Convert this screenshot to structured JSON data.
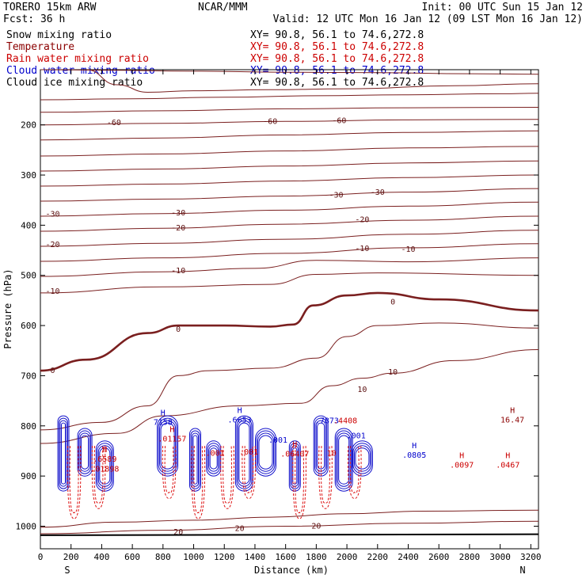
{
  "header": {
    "left_line1": "TORERO  15km ARW",
    "center_line1": "NCAR/MMM",
    "right_line1": "Init: 00 UTC Sun 15 Jan 12",
    "left_line2": "Fcst:   36 h",
    "right_line2": "Valid: 12 UTC Mon 16 Jan 12 (09 LST Mon 16 Jan 12)",
    "fields": [
      {
        "name": "Snow mixing ratio",
        "xy": "XY=  90.8, 56.1 to  74.6,272.8",
        "color": "#000000",
        "xy_color": "#000000"
      },
      {
        "name": "Temperature",
        "xy": "XY=  90.8, 56.1 to  74.6,272.8",
        "color": "#8b0000",
        "xy_color": "#cc0000"
      },
      {
        "name": "Rain water mixing ratio",
        "xy": "XY=  90.8, 56.1 to  74.6,272.8",
        "color": "#cc0000",
        "xy_color": "#cc0000"
      },
      {
        "name": "Cloud water mixing ratio",
        "xy": "XY=  90.8, 56.1 to  74.6,272.8",
        "color": "#0000cc",
        "xy_color": "#0000cc"
      },
      {
        "name": "Cloud ice mixing ratio",
        "xy": "XY=  90.8, 56.1 to  74.6,272.8",
        "color": "#000000",
        "xy_color": "#000000"
      }
    ]
  },
  "chart_data": {
    "type": "contour",
    "xlabel": "Distance (km)",
    "ylabel": "Pressure (hPa)",
    "x_ticks": [
      0,
      200,
      400,
      600,
      800,
      1000,
      1200,
      1400,
      1600,
      1800,
      2000,
      2200,
      2400,
      2600,
      2800,
      3000,
      3200
    ],
    "y_ticks": [
      200,
      300,
      400,
      500,
      600,
      700,
      800,
      900,
      1000
    ],
    "xlim": [
      0,
      3250
    ],
    "ylim": [
      1045,
      90
    ],
    "end_labels": {
      "left": "S",
      "right": "N"
    },
    "temperature_contours": [
      {
        "level": "-70",
        "points": [
          [
            0,
            90
          ],
          [
            400,
            91
          ],
          [
            1000,
            93
          ],
          [
            1600,
            95
          ],
          [
            2200,
            96
          ],
          [
            2800,
            98
          ],
          [
            3250,
            99
          ]
        ]
      },
      {
        "level": "-70",
        "points": [
          [
            300,
            90
          ],
          [
            500,
            120
          ],
          [
            700,
            135
          ],
          [
            1000,
            132
          ],
          [
            1500,
            130
          ],
          [
            2000,
            128
          ],
          [
            2700,
            122
          ],
          [
            3250,
            118
          ]
        ]
      },
      {
        "level": "-60",
        "points": [
          [
            0,
            150
          ],
          [
            600,
            148
          ],
          [
            1200,
            145
          ],
          [
            1800,
            142
          ],
          [
            2400,
            140
          ],
          [
            3000,
            138
          ],
          [
            3250,
            137
          ]
        ]
      },
      {
        "level": "-60",
        "points": [
          [
            0,
            175
          ],
          [
            800,
            172
          ],
          [
            1600,
            168
          ],
          [
            2400,
            166
          ],
          [
            3250,
            165
          ]
        ]
      },
      {
        "level": "-60",
        "points": [
          [
            0,
            200
          ],
          [
            800,
            197
          ],
          [
            1600,
            193
          ],
          [
            2400,
            190
          ],
          [
            3250,
            189
          ]
        ]
      },
      {
        "level": "-50",
        "points": [
          [
            0,
            230
          ],
          [
            800,
            226
          ],
          [
            1600,
            220
          ],
          [
            2400,
            215
          ],
          [
            3250,
            212
          ]
        ]
      },
      {
        "level": "-50",
        "points": [
          [
            0,
            262
          ],
          [
            800,
            258
          ],
          [
            1600,
            252
          ],
          [
            2400,
            246
          ],
          [
            3250,
            243
          ]
        ]
      },
      {
        "level": "-40",
        "points": [
          [
            0,
            292
          ],
          [
            800,
            288
          ],
          [
            1600,
            282
          ],
          [
            2400,
            276
          ],
          [
            3250,
            272
          ]
        ]
      },
      {
        "level": "-40",
        "points": [
          [
            0,
            322
          ],
          [
            800,
            318
          ],
          [
            1600,
            312
          ],
          [
            2400,
            305
          ],
          [
            3250,
            300
          ]
        ]
      },
      {
        "level": "-30",
        "points": [
          [
            0,
            352
          ],
          [
            800,
            348
          ],
          [
            1600,
            342
          ],
          [
            2400,
            334
          ],
          [
            3250,
            327
          ]
        ]
      },
      {
        "level": "-30",
        "points": [
          [
            0,
            382
          ],
          [
            800,
            377
          ],
          [
            1600,
            370
          ],
          [
            2400,
            362
          ],
          [
            3250,
            354
          ]
        ]
      },
      {
        "level": "-20",
        "points": [
          [
            0,
            412
          ],
          [
            800,
            406
          ],
          [
            1600,
            398
          ],
          [
            2400,
            390
          ],
          [
            3250,
            382
          ]
        ]
      },
      {
        "level": "-20",
        "points": [
          [
            0,
            442
          ],
          [
            800,
            436
          ],
          [
            1600,
            428
          ],
          [
            2400,
            418
          ],
          [
            3250,
            410
          ]
        ]
      },
      {
        "level": "-10",
        "points": [
          [
            0,
            472
          ],
          [
            800,
            465
          ],
          [
            1600,
            456
          ],
          [
            2400,
            445
          ],
          [
            3250,
            437
          ]
        ]
      },
      {
        "level": "-10",
        "points": [
          [
            0,
            502
          ],
          [
            800,
            493
          ],
          [
            1400,
            486
          ],
          [
            1800,
            470
          ],
          [
            2400,
            473
          ],
          [
            3250,
            465
          ]
        ]
      },
      {
        "level": "-10",
        "points": [
          [
            0,
            535
          ],
          [
            800,
            523
          ],
          [
            1500,
            518
          ],
          [
            1800,
            498
          ],
          [
            2200,
            495
          ],
          [
            3250,
            500
          ]
        ]
      },
      {
        "level": "0",
        "bold": true,
        "points": [
          [
            0,
            690
          ],
          [
            300,
            668
          ],
          [
            700,
            615
          ],
          [
            900,
            600
          ],
          [
            1200,
            600
          ],
          [
            1500,
            602
          ],
          [
            1650,
            598
          ],
          [
            1780,
            560
          ],
          [
            2000,
            540
          ],
          [
            2200,
            535
          ],
          [
            2600,
            548
          ],
          [
            3250,
            570
          ]
        ]
      },
      {
        "level": "10",
        "points": [
          [
            0,
            808
          ],
          [
            400,
            793
          ],
          [
            700,
            760
          ],
          [
            900,
            700
          ],
          [
            1100,
            690
          ],
          [
            1500,
            685
          ],
          [
            1800,
            665
          ],
          [
            2000,
            622
          ],
          [
            2200,
            600
          ],
          [
            2600,
            595
          ],
          [
            3250,
            605
          ]
        ]
      },
      {
        "level": "10",
        "points": [
          [
            0,
            835
          ],
          [
            500,
            815
          ],
          [
            800,
            780
          ],
          [
            1300,
            760
          ],
          [
            1700,
            755
          ],
          [
            1900,
            720
          ],
          [
            2100,
            705
          ],
          [
            2300,
            695
          ],
          [
            2700,
            670
          ],
          [
            3250,
            648
          ]
        ]
      },
      {
        "level": "20",
        "points": [
          [
            0,
            1002
          ],
          [
            500,
            992
          ],
          [
            1000,
            988
          ],
          [
            1500,
            982
          ],
          [
            2000,
            975
          ],
          [
            2500,
            970
          ],
          [
            3250,
            968
          ]
        ]
      },
      {
        "level": "20",
        "points": [
          [
            0,
            1015
          ],
          [
            800,
            1008
          ],
          [
            1600,
            1000
          ],
          [
            2400,
            994
          ],
          [
            3250,
            990
          ]
        ]
      }
    ],
    "contour_labels": [
      {
        "text": "-60",
        "x": 480,
        "y": 196
      },
      {
        "text": "-60",
        "x": 1500,
        "y": 193
      },
      {
        "text": "-60",
        "x": 1950,
        "y": 192
      },
      {
        "text": "-30",
        "x": 1930,
        "y": 340
      },
      {
        "text": "-30",
        "x": 2200,
        "y": 335
      },
      {
        "text": "-30",
        "x": 80,
        "y": 378
      },
      {
        "text": "-30",
        "x": 900,
        "y": 376
      },
      {
        "text": "-20",
        "x": 900,
        "y": 406
      },
      {
        "text": "-20",
        "x": 2100,
        "y": 389
      },
      {
        "text": "-20",
        "x": 80,
        "y": 439
      },
      {
        "text": "-10",
        "x": 2100,
        "y": 447
      },
      {
        "text": "-10",
        "x": 2400,
        "y": 448
      },
      {
        "text": "-10",
        "x": 900,
        "y": 491
      },
      {
        "text": "-10",
        "x": 80,
        "y": 532
      },
      {
        "text": "0",
        "x": 900,
        "y": 608
      },
      {
        "text": "0",
        "x": 2300,
        "y": 553
      },
      {
        "text": "0",
        "x": 80,
        "y": 690
      },
      {
        "text": "10",
        "x": 2300,
        "y": 693
      },
      {
        "text": "10",
        "x": 2100,
        "y": 728
      },
      {
        "text": "20",
        "x": 900,
        "y": 1012
      },
      {
        "text": "20",
        "x": 1300,
        "y": 1005
      },
      {
        "text": "20",
        "x": 1800,
        "y": 1000
      }
    ],
    "extrema_labels": [
      {
        "marker": "H",
        "value": "7158",
        "x": 800,
        "y": 795,
        "color": "#0000cc"
      },
      {
        "marker": "H",
        "value": ".6589",
        "x": 420,
        "y": 868,
        "color": "#cc0000"
      },
      {
        "marker": "",
        "value": ".01898",
        "x": 420,
        "y": 888,
        "color": "#cc0000"
      },
      {
        "marker": "H",
        "value": ".01157",
        "x": 860,
        "y": 828,
        "color": "#cc0000"
      },
      {
        "marker": "H",
        "value": ".6653",
        "x": 1300,
        "y": 790,
        "color": "#0000cc"
      },
      {
        "marker": "",
        "value": ".001",
        "x": 1550,
        "y": 830,
        "color": "#0000cc"
      },
      {
        "marker": "",
        "value": ".001",
        "x": 1140,
        "y": 856,
        "color": "#cc0000"
      },
      {
        "marker": "",
        "value": ".001",
        "x": 1360,
        "y": 854,
        "color": "#cc0000"
      },
      {
        "marker": "H",
        "value": ".06407",
        "x": 1660,
        "y": 858,
        "color": "#cc0000"
      },
      {
        "marker": "",
        "value": ".7873",
        "x": 1870,
        "y": 792,
        "color": "#0000cc"
      },
      {
        "marker": "",
        "value": ".4408",
        "x": 1990,
        "y": 792,
        "color": "#cc0000"
      },
      {
        "marker": "",
        "value": ".001",
        "x": 2060,
        "y": 822,
        "color": "#0000cc"
      },
      {
        "marker": "",
        "value": "10",
        "x": 1900,
        "y": 856,
        "color": "#cc0000"
      },
      {
        "marker": "H",
        "value": ".0805",
        "x": 2440,
        "y": 860,
        "color": "#0000cc"
      },
      {
        "marker": "H",
        "value": ".0097",
        "x": 2750,
        "y": 880,
        "color": "#cc0000"
      },
      {
        "marker": "H",
        "value": ".0467",
        "x": 3050,
        "y": 880,
        "color": "#cc0000"
      },
      {
        "marker": "H",
        "value": "16.47",
        "x": 3080,
        "y": 790,
        "color": "#8b0000"
      }
    ],
    "terrain_line_hpa": 1018,
    "cloud_water_cells_km": [
      150,
      290,
      420,
      830,
      1010,
      1130,
      1330,
      1470,
      1660,
      1830,
      1980,
      2100
    ],
    "rain_cells_km": [
      220,
      380,
      840,
      1030,
      1220,
      1360,
      1690,
      1860,
      2050
    ]
  }
}
